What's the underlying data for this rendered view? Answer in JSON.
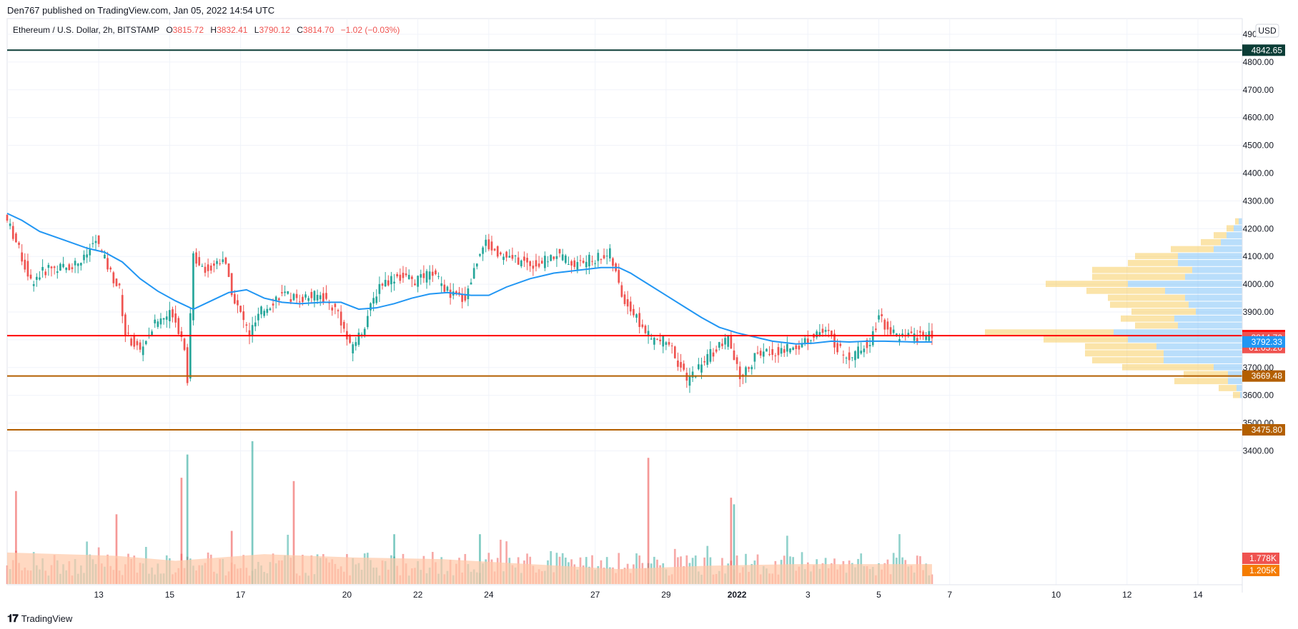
{
  "header": {
    "published": "Den767 published on TradingView.com, Jan 05, 2022 14:54 UTC"
  },
  "footer": {
    "brand": "TradingView"
  },
  "colors": {
    "up": "#26a69a",
    "down": "#ef5350",
    "ma": "#2196f3",
    "level_green": "#0b3d36",
    "level_orange": "#b35f00",
    "level_red": "#ff0000",
    "vp_up": "#64b5f6",
    "vp_down": "#f7c441",
    "vol_ma": "#ffc9a8"
  },
  "chart_data": {
    "type": "candlestick",
    "symbol": "Ethereum / U.S. Dollar, 2h, BITSTAMP",
    "ohlc_labels": {
      "o": "O",
      "h": "H",
      "l": "L",
      "c": "C"
    },
    "ohlc": {
      "open": "3815.72",
      "high": "3832.41",
      "low": "3790.12",
      "close": "3814.70",
      "change": "−1.02 (−0.03%)"
    },
    "currency": "USD",
    "price_ticks": [
      3400,
      3500,
      3600,
      3700,
      3800,
      3900,
      4000,
      4100,
      4200,
      4300,
      4400,
      4500,
      4600,
      4700,
      4800,
      4900
    ],
    "price_tick_labels": [
      "3400.00",
      "3500.00",
      "3600.00",
      "3700.00",
      "3800.00",
      "3900.00",
      "4000.00",
      "4100.00",
      "4200.00",
      "4300.00",
      "4400.00",
      "4500.00",
      "4600.00",
      "4700.00",
      "4800.00",
      "4900.00"
    ],
    "x_ticks": [
      {
        "label": "13",
        "t": 14
      },
      {
        "label": "15",
        "t": 38
      },
      {
        "label": "17",
        "t": 62
      },
      {
        "label": "20",
        "t": 98
      },
      {
        "label": "22",
        "t": 122
      },
      {
        "label": "24",
        "t": 146
      },
      {
        "label": "27",
        "t": 182
      },
      {
        "label": "29",
        "t": 206
      },
      {
        "label": "2022",
        "t": 230,
        "bold": true
      },
      {
        "label": "3",
        "t": 254
      },
      {
        "label": "5",
        "t": 278
      },
      {
        "label": "7",
        "t": 302
      },
      {
        "label": "10",
        "t": 338
      },
      {
        "label": "12",
        "t": 362
      },
      {
        "label": "14",
        "t": 386
      }
    ],
    "t_range": [
      -17,
      401
    ],
    "last_t": 296,
    "key_prices": [
      {
        "t": -17,
        "p": 4250
      },
      {
        "t": -14,
        "p": 4180
      },
      {
        "t": -8,
        "p": 4010
      },
      {
        "t": -2,
        "p": 4060
      },
      {
        "t": 4,
        "p": 4060
      },
      {
        "t": 10,
        "p": 4090
      },
      {
        "t": 14,
        "p": 4160
      },
      {
        "t": 19,
        "p": 4040
      },
      {
        "t": 22,
        "p": 3980
      },
      {
        "t": 24,
        "p": 3820
      },
      {
        "t": 29,
        "p": 3760
      },
      {
        "t": 34,
        "p": 3860
      },
      {
        "t": 40,
        "p": 3900
      },
      {
        "t": 44,
        "p": 3780
      },
      {
        "t": 45,
        "p": 3660
      },
      {
        "t": 47,
        "p": 4100
      },
      {
        "t": 52,
        "p": 4050
      },
      {
        "t": 57,
        "p": 4100
      },
      {
        "t": 61,
        "p": 3940
      },
      {
        "t": 66,
        "p": 3820
      },
      {
        "t": 70,
        "p": 3900
      },
      {
        "t": 76,
        "p": 3960
      },
      {
        "t": 83,
        "p": 3950
      },
      {
        "t": 90,
        "p": 3960
      },
      {
        "t": 96,
        "p": 3900
      },
      {
        "t": 100,
        "p": 3770
      },
      {
        "t": 104,
        "p": 3830
      },
      {
        "t": 110,
        "p": 4000
      },
      {
        "t": 116,
        "p": 4030
      },
      {
        "t": 122,
        "p": 4010
      },
      {
        "t": 128,
        "p": 4040
      },
      {
        "t": 134,
        "p": 3960
      },
      {
        "t": 139,
        "p": 3950
      },
      {
        "t": 145,
        "p": 4150
      },
      {
        "t": 152,
        "p": 4100
      },
      {
        "t": 158,
        "p": 4080
      },
      {
        "t": 164,
        "p": 4070
      },
      {
        "t": 170,
        "p": 4110
      },
      {
        "t": 176,
        "p": 4070
      },
      {
        "t": 182,
        "p": 4090
      },
      {
        "t": 188,
        "p": 4110
      },
      {
        "t": 192,
        "p": 3960
      },
      {
        "t": 198,
        "p": 3860
      },
      {
        "t": 202,
        "p": 3800
      },
      {
        "t": 208,
        "p": 3790
      },
      {
        "t": 214,
        "p": 3650
      },
      {
        "t": 222,
        "p": 3750
      },
      {
        "t": 228,
        "p": 3800
      },
      {
        "t": 232,
        "p": 3660
      },
      {
        "t": 238,
        "p": 3750
      },
      {
        "t": 246,
        "p": 3760
      },
      {
        "t": 252,
        "p": 3780
      },
      {
        "t": 258,
        "p": 3830
      },
      {
        "t": 262,
        "p": 3820
      },
      {
        "t": 266,
        "p": 3760
      },
      {
        "t": 270,
        "p": 3740
      },
      {
        "t": 276,
        "p": 3800
      },
      {
        "t": 279,
        "p": 3880
      },
      {
        "t": 285,
        "p": 3810
      },
      {
        "t": 296,
        "p": 3815
      }
    ],
    "ma_points": [
      {
        "t": -17,
        "p": 4255
      },
      {
        "t": -12,
        "p": 4230
      },
      {
        "t": -6,
        "p": 4190
      },
      {
        "t": 2,
        "p": 4160
      },
      {
        "t": 10,
        "p": 4130
      },
      {
        "t": 16,
        "p": 4115
      },
      {
        "t": 22,
        "p": 4080
      },
      {
        "t": 28,
        "p": 4020
      },
      {
        "t": 34,
        "p": 3975
      },
      {
        "t": 40,
        "p": 3940
      },
      {
        "t": 46,
        "p": 3910
      },
      {
        "t": 52,
        "p": 3940
      },
      {
        "t": 58,
        "p": 3970
      },
      {
        "t": 64,
        "p": 3980
      },
      {
        "t": 70,
        "p": 3950
      },
      {
        "t": 76,
        "p": 3935
      },
      {
        "t": 82,
        "p": 3930
      },
      {
        "t": 90,
        "p": 3935
      },
      {
        "t": 96,
        "p": 3935
      },
      {
        "t": 102,
        "p": 3910
      },
      {
        "t": 108,
        "p": 3915
      },
      {
        "t": 114,
        "p": 3930
      },
      {
        "t": 120,
        "p": 3950
      },
      {
        "t": 126,
        "p": 3965
      },
      {
        "t": 132,
        "p": 3970
      },
      {
        "t": 140,
        "p": 3960
      },
      {
        "t": 146,
        "p": 3960
      },
      {
        "t": 152,
        "p": 3990
      },
      {
        "t": 160,
        "p": 4020
      },
      {
        "t": 168,
        "p": 4040
      },
      {
        "t": 176,
        "p": 4050
      },
      {
        "t": 184,
        "p": 4060
      },
      {
        "t": 190,
        "p": 4060
      },
      {
        "t": 194,
        "p": 4040
      },
      {
        "t": 200,
        "p": 4000
      },
      {
        "t": 206,
        "p": 3960
      },
      {
        "t": 212,
        "p": 3920
      },
      {
        "t": 218,
        "p": 3880
      },
      {
        "t": 224,
        "p": 3845
      },
      {
        "t": 230,
        "p": 3825
      },
      {
        "t": 236,
        "p": 3810
      },
      {
        "t": 242,
        "p": 3795
      },
      {
        "t": 250,
        "p": 3785
      },
      {
        "t": 256,
        "p": 3788
      },
      {
        "t": 262,
        "p": 3795
      },
      {
        "t": 268,
        "p": 3792
      },
      {
        "t": 274,
        "p": 3795
      },
      {
        "t": 280,
        "p": 3795
      },
      {
        "t": 290,
        "p": 3792
      },
      {
        "t": 296,
        "p": 3792
      }
    ],
    "volume_scale_max": 4.3,
    "volume_spikes": [
      {
        "t": -14,
        "v": 2.8,
        "down": true
      },
      {
        "t": 20,
        "v": 2.1,
        "down": true
      },
      {
        "t": 42,
        "v": 3.2,
        "down": true
      },
      {
        "t": 44,
        "v": 3.9,
        "down": false
      },
      {
        "t": 59,
        "v": 1.6,
        "down": true
      },
      {
        "t": 66,
        "v": 4.3,
        "down": false
      },
      {
        "t": 80,
        "v": 3.1,
        "down": true
      },
      {
        "t": 114,
        "v": 1.5,
        "down": false
      },
      {
        "t": 143,
        "v": 1.5,
        "down": false
      },
      {
        "t": 200,
        "v": 3.8,
        "down": true
      },
      {
        "t": 228,
        "v": 2.6,
        "down": true
      },
      {
        "t": 229,
        "v": 2.4,
        "down": false
      }
    ],
    "volume_ma_levels": [
      {
        "t": -17,
        "v": 0.95
      },
      {
        "t": 20,
        "v": 0.85
      },
      {
        "t": 40,
        "v": 0.7
      },
      {
        "t": 70,
        "v": 0.9
      },
      {
        "t": 100,
        "v": 0.8
      },
      {
        "t": 130,
        "v": 0.75
      },
      {
        "t": 160,
        "v": 0.6
      },
      {
        "t": 190,
        "v": 0.45
      },
      {
        "t": 220,
        "v": 0.55
      },
      {
        "t": 250,
        "v": 0.6
      },
      {
        "t": 280,
        "v": 0.6
      },
      {
        "t": 296,
        "v": 0.6
      }
    ],
    "volume_profile": [
      {
        "p": 4225,
        "up": 5,
        "down": 5
      },
      {
        "p": 4200,
        "up": 12,
        "down": 10
      },
      {
        "p": 4175,
        "up": 22,
        "down": 18
      },
      {
        "p": 4150,
        "up": 30,
        "down": 28
      },
      {
        "p": 4125,
        "up": 40,
        "down": 60
      },
      {
        "p": 4100,
        "up": 90,
        "down": 60
      },
      {
        "p": 4075,
        "up": 90,
        "down": 70
      },
      {
        "p": 4050,
        "up": 70,
        "down": 140
      },
      {
        "p": 4025,
        "up": 80,
        "down": 130
      },
      {
        "p": 4000,
        "up": 160,
        "down": 115
      },
      {
        "p": 3975,
        "up": 108,
        "down": 110
      },
      {
        "p": 3950,
        "up": 80,
        "down": 108
      },
      {
        "p": 3925,
        "up": 75,
        "down": 110
      },
      {
        "p": 3900,
        "up": 65,
        "down": 90
      },
      {
        "p": 3875,
        "up": 95,
        "down": 75
      },
      {
        "p": 3850,
        "up": 90,
        "down": 60
      },
      {
        "p": 3825,
        "up": 180,
        "down": 180
      },
      {
        "p": 3800,
        "up": 160,
        "down": 118
      },
      {
        "p": 3775,
        "up": 120,
        "down": 100
      },
      {
        "p": 3750,
        "up": 110,
        "down": 110
      },
      {
        "p": 3725,
        "up": 110,
        "down": 100
      },
      {
        "p": 3700,
        "up": 40,
        "down": 128
      },
      {
        "p": 3675,
        "up": 20,
        "down": 62
      },
      {
        "p": 3650,
        "up": 20,
        "down": 75
      },
      {
        "p": 3625,
        "up": 8,
        "down": 25
      },
      {
        "p": 3600,
        "up": 3,
        "down": 10
      }
    ],
    "levels": [
      {
        "price": 4842.65,
        "label": "4842.65",
        "color": "#0b3d36"
      },
      {
        "price": 3814.85,
        "label": "3814.85",
        "color": "#ff0000"
      },
      {
        "price": 3669.48,
        "label": "3669.48",
        "color": "#b35f00"
      },
      {
        "price": 3475.8,
        "label": "3475.80",
        "color": "#b35f00"
      }
    ],
    "tags": [
      {
        "label": "3814.70",
        "sub": "01:05:20",
        "price": 3808,
        "color": "#ef5350"
      },
      {
        "label": "3792.33",
        "price": 3792.33,
        "color": "#2196f3"
      }
    ],
    "volume_tags": [
      {
        "label": "1.778K",
        "color": "#ef5350"
      },
      {
        "label": "1.205K",
        "color": "#f57c00"
      }
    ]
  }
}
